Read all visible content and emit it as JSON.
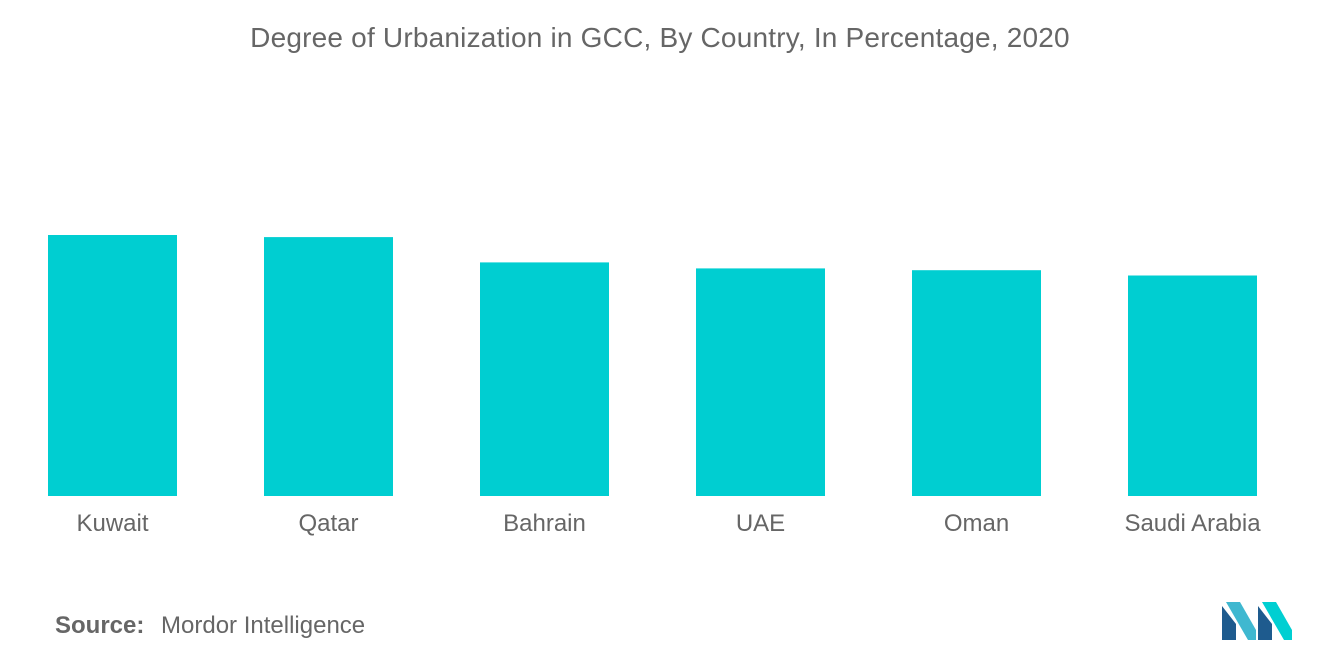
{
  "chart_title": "Degree of Urbanization in GCC, By Country, In Percentage, 2020",
  "source": {
    "label": "Source:",
    "value": "Mordor Intelligence"
  },
  "logo": {
    "icon": "mordor-intelligence-logo-icon",
    "colors": [
      "#1e5b8e",
      "#3fb8d0",
      "#00cfd2"
    ]
  },
  "colors": {
    "bar": "#00ced1",
    "text": "#666666"
  },
  "chart_data": {
    "type": "bar",
    "title": "Degree of Urbanization in GCC, By Country, In Percentage, 2020",
    "xlabel": "",
    "ylabel": "",
    "categories": [
      "Kuwait",
      "Qatar",
      "Bahrain",
      "UAE",
      "Oman",
      "Saudi Arabia"
    ],
    "values": [
      100,
      99.2,
      89.5,
      87.2,
      86.5,
      84.5
    ],
    "ylim": [
      0,
      100
    ],
    "grid": false,
    "legend": "none"
  }
}
